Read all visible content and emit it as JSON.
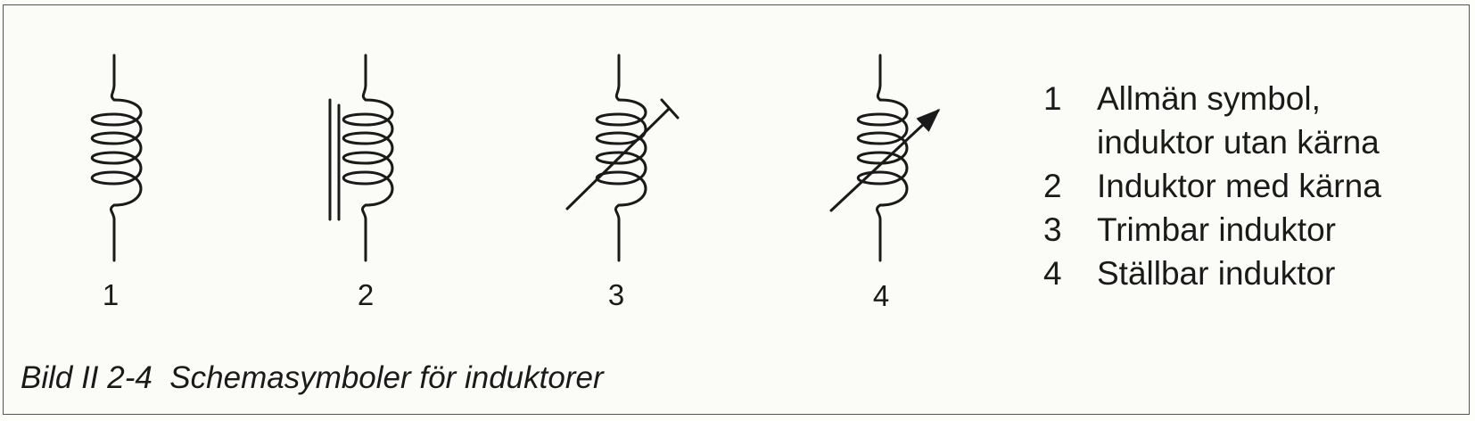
{
  "symbol_numbers": [
    "1",
    "2",
    "3",
    "4"
  ],
  "legend": [
    {
      "number": "1",
      "lines": [
        "Allmän symbol,",
        "induktor utan kärna"
      ]
    },
    {
      "number": "2",
      "lines": [
        "Induktor med kärna"
      ]
    },
    {
      "number": "3",
      "lines": [
        "Trimbar induktor"
      ]
    },
    {
      "number": "4",
      "lines": [
        "Ställbar induktor"
      ]
    }
  ],
  "caption": "Bild II 2-4  Schemasymboler för induktorer"
}
